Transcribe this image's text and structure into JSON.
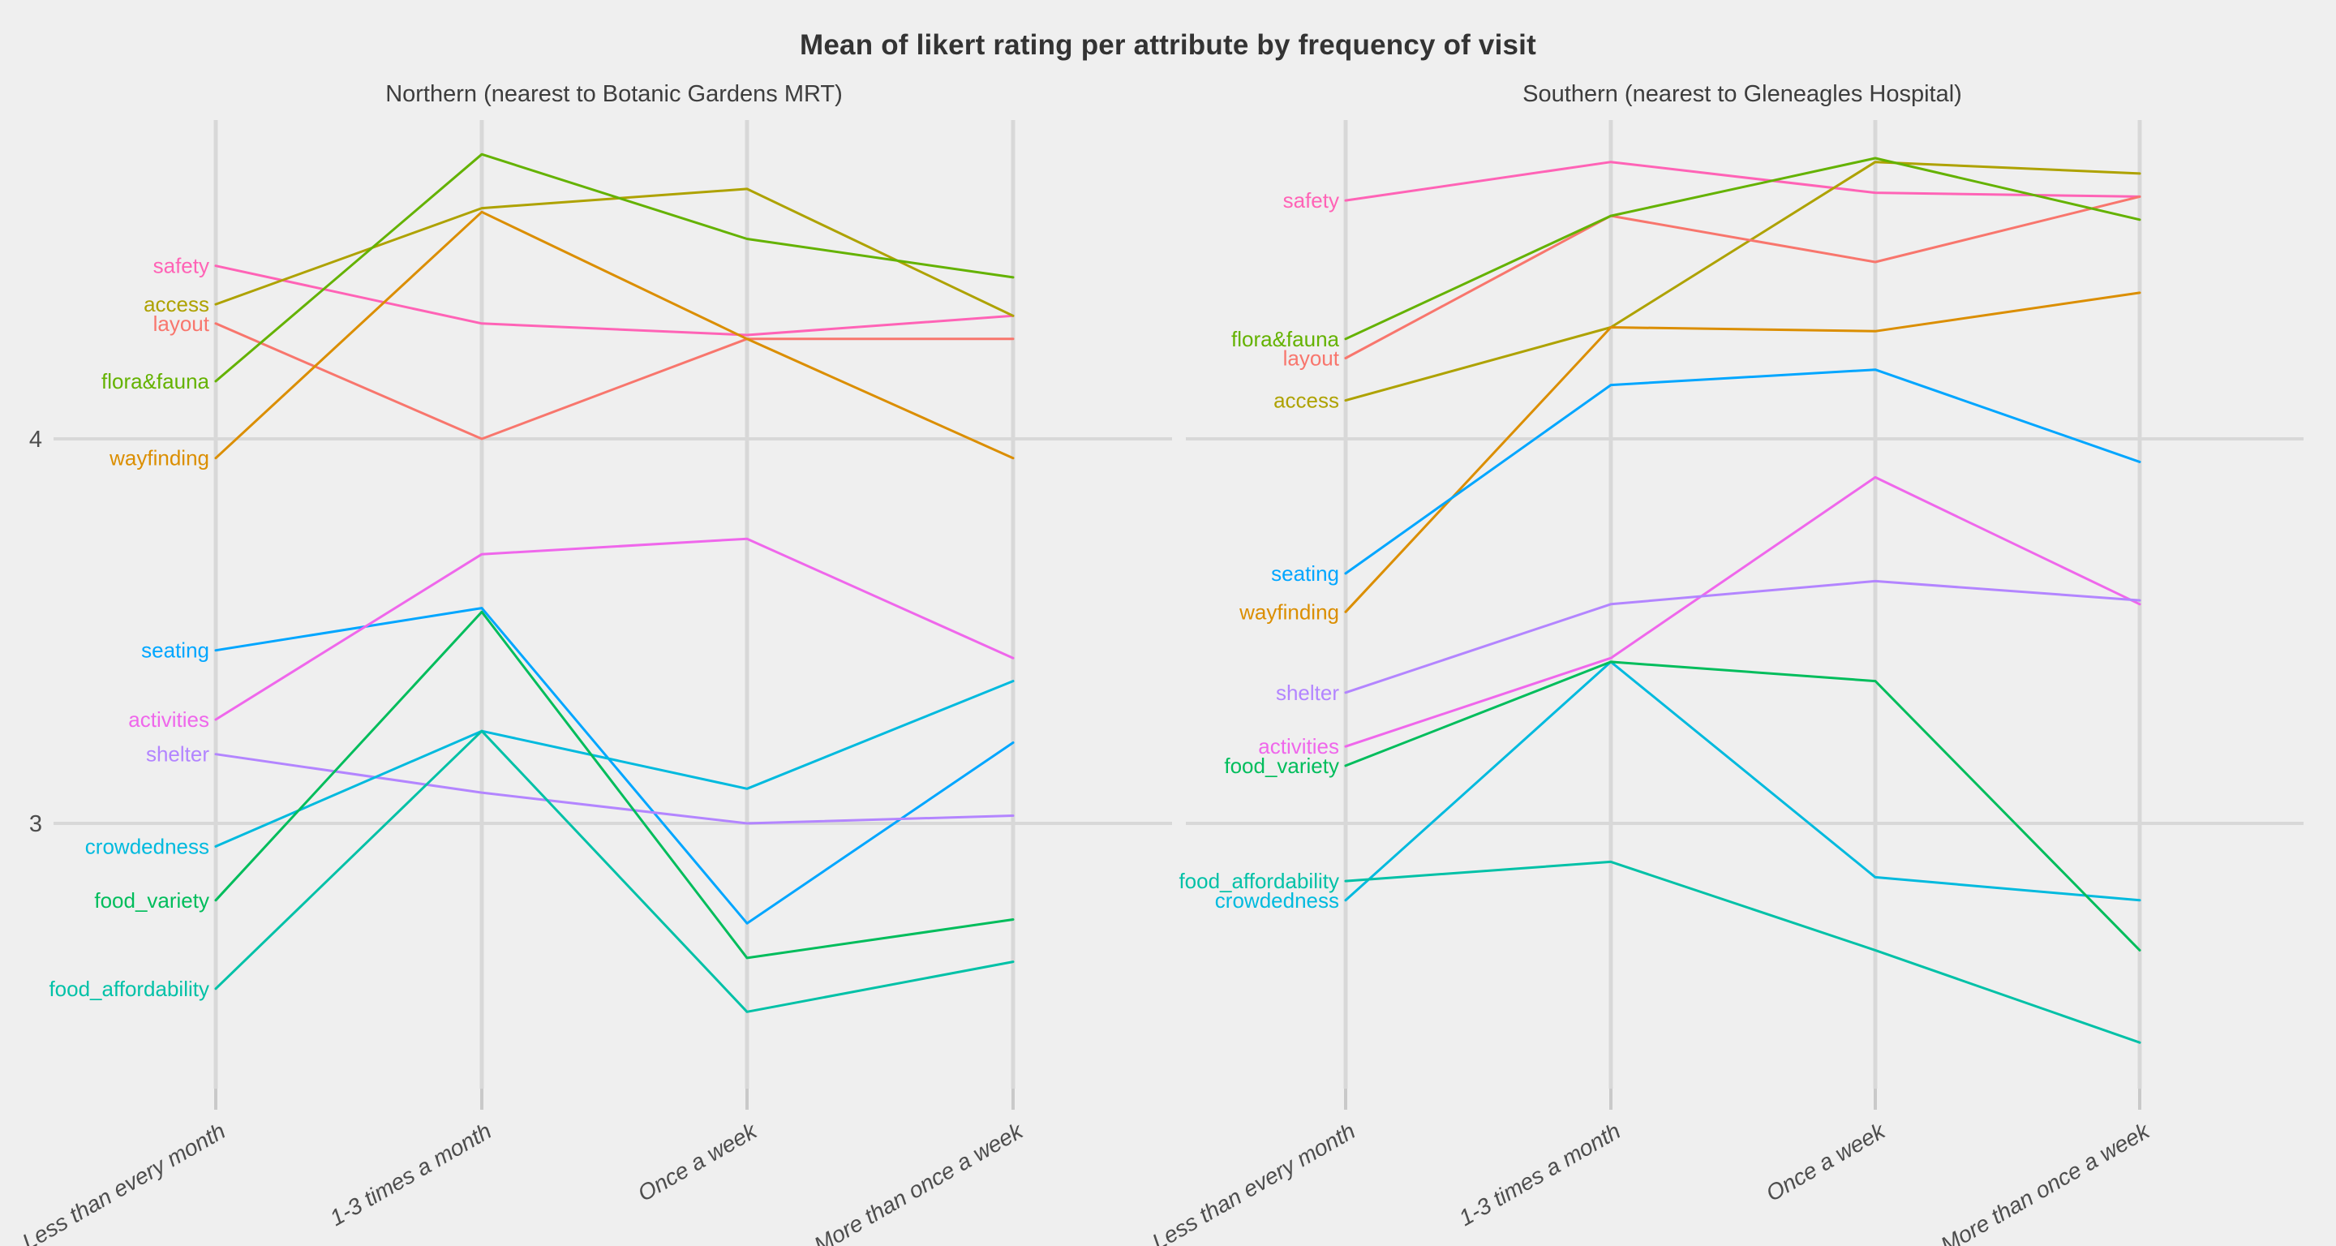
{
  "chart_data": {
    "type": "line",
    "title": "Mean of likert rating per attribute by frequency of visit",
    "categories": [
      "Less than every month",
      "1-3 times a month",
      "Once a week",
      "More than once a week"
    ],
    "xlabel": "",
    "ylabel": "",
    "ylim": [
      2.3,
      4.9
    ],
    "grid": "major-only",
    "legend_position": "direct-labels-left-of-first-point",
    "y_ticks": [
      {
        "label": "4",
        "value": 4
      },
      {
        "label": "3",
        "value": 3
      }
    ],
    "panels": [
      {
        "title": "Northern (nearest to Botanic Gardens MRT)",
        "series": [
          {
            "name": "safety",
            "color": "#FF63B6",
            "values": [
              4.45,
              4.3,
              4.27,
              4.32
            ]
          },
          {
            "name": "access",
            "color": "#AEA200",
            "values": [
              4.35,
              4.6,
              4.65,
              4.32
            ]
          },
          {
            "name": "layout",
            "color": "#F8766D",
            "values": [
              4.3,
              4.0,
              4.26,
              4.26
            ]
          },
          {
            "name": "flora&fauna",
            "color": "#64B200",
            "values": [
              4.15,
              4.74,
              4.52,
              4.42
            ]
          },
          {
            "name": "wayfinding",
            "color": "#DB8E00",
            "values": [
              3.95,
              4.59,
              4.26,
              3.95
            ]
          },
          {
            "name": "seating",
            "color": "#00A6FF",
            "values": [
              3.45,
              3.56,
              2.74,
              3.21
            ]
          },
          {
            "name": "activities",
            "color": "#EF67EB",
            "values": [
              3.27,
              3.7,
              3.74,
              3.43
            ]
          },
          {
            "name": "shelter",
            "color": "#B385FF",
            "values": [
              3.18,
              3.08,
              3.0,
              3.02
            ]
          },
          {
            "name": "crowdedness",
            "color": "#00BADE",
            "values": [
              2.94,
              3.24,
              3.09,
              3.37
            ]
          },
          {
            "name": "food_variety",
            "color": "#00BD5C",
            "values": [
              2.8,
              3.55,
              2.65,
              2.75
            ]
          },
          {
            "name": "food_affordability",
            "color": "#00C1A7",
            "values": [
              2.57,
              3.24,
              2.51,
              2.64
            ]
          }
        ]
      },
      {
        "title": "Southern (nearest to Gleneagles Hospital)",
        "series": [
          {
            "name": "safety",
            "color": "#FF63B6",
            "values": [
              4.62,
              4.72,
              4.64,
              4.63
            ]
          },
          {
            "name": "access",
            "color": "#AEA200",
            "values": [
              4.1,
              4.29,
              4.72,
              4.69
            ]
          },
          {
            "name": "layout",
            "color": "#F8766D",
            "values": [
              4.21,
              4.58,
              4.46,
              4.63
            ]
          },
          {
            "name": "flora&fauna",
            "color": "#64B200",
            "values": [
              4.26,
              4.58,
              4.73,
              4.57
            ]
          },
          {
            "name": "wayfinding",
            "color": "#DB8E00",
            "values": [
              3.55,
              4.29,
              4.28,
              4.38
            ]
          },
          {
            "name": "seating",
            "color": "#00A6FF",
            "values": [
              3.65,
              4.14,
              4.18,
              3.94
            ]
          },
          {
            "name": "activities",
            "color": "#EF67EB",
            "values": [
              3.2,
              3.43,
              3.9,
              3.57
            ]
          },
          {
            "name": "shelter",
            "color": "#B385FF",
            "values": [
              3.34,
              3.57,
              3.63,
              3.58
            ]
          },
          {
            "name": "crowdedness",
            "color": "#00BADE",
            "values": [
              2.8,
              3.42,
              2.86,
              2.8
            ]
          },
          {
            "name": "food_variety",
            "color": "#00BD5C",
            "values": [
              3.15,
              3.42,
              3.37,
              2.67
            ]
          },
          {
            "name": "food_affordability",
            "color": "#00C1A7",
            "values": [
              2.85,
              2.9,
              2.67,
              2.43
            ]
          }
        ]
      }
    ],
    "colors": {
      "background": "#EFEFEF",
      "gridline": "#D8D8D8",
      "tick_mark": "#C9C9C9",
      "axis_text": "#4D4D4D",
      "title_text": "#333333"
    }
  }
}
